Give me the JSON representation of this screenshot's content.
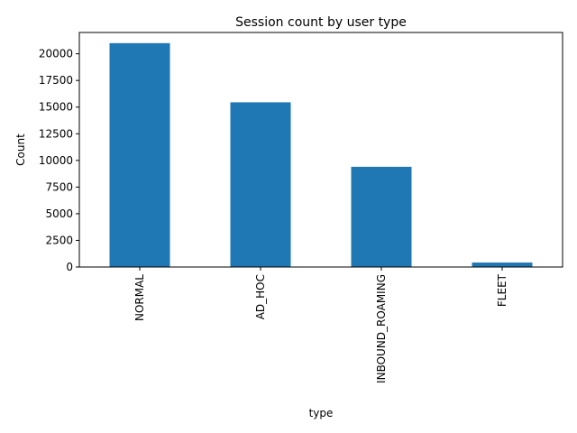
{
  "chart_data": {
    "type": "bar",
    "title": "Session count by user type",
    "xlabel": "type",
    "ylabel": "Count",
    "categories": [
      "NORMAL",
      "AD_HOC",
      "INBOUND_ROAMING",
      "FLEET"
    ],
    "values": [
      21000,
      15450,
      9400,
      420
    ],
    "ylim": [
      0,
      22000
    ],
    "yticks": [
      0,
      2500,
      5000,
      7500,
      10000,
      12500,
      15000,
      17500,
      20000
    ],
    "bar_color": "#1f77b4",
    "grid": false,
    "legend": "none"
  }
}
